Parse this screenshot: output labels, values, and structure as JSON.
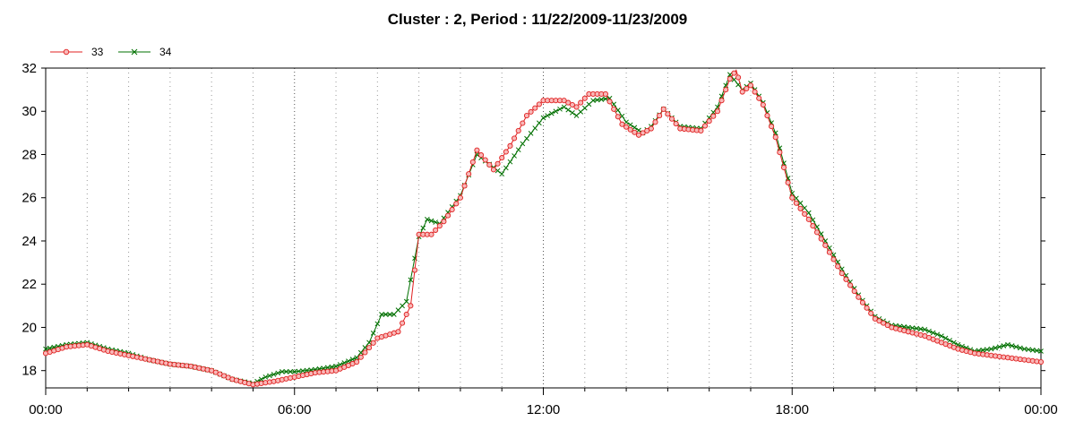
{
  "chart_data": {
    "type": "line",
    "title": "Cluster : 2, Period : 11/22/2009-11/23/2009",
    "xlabel": "",
    "ylabel": "",
    "x_tick_labels": [
      "00:00",
      "06:00",
      "12:00",
      "18:00",
      "00:00"
    ],
    "x_hours": [
      0,
      24
    ],
    "ylim": [
      17.2,
      32
    ],
    "y_ticks": [
      18,
      20,
      22,
      24,
      26,
      28,
      30,
      32
    ],
    "grid": "vertical dotted",
    "legend_position": "top-left",
    "series": [
      {
        "name": "33",
        "color": "#e02020",
        "marker": "circle",
        "points": [
          [
            0,
            18.8
          ],
          [
            0.5,
            19.1
          ],
          [
            1,
            19.2
          ],
          [
            1.5,
            18.9
          ],
          [
            2,
            18.7
          ],
          [
            2.5,
            18.5
          ],
          [
            3,
            18.3
          ],
          [
            3.5,
            18.2
          ],
          [
            4,
            18.0
          ],
          [
            4.5,
            17.6
          ],
          [
            5,
            17.35
          ],
          [
            5.5,
            17.5
          ],
          [
            6,
            17.7
          ],
          [
            6.5,
            17.9
          ],
          [
            7,
            18.0
          ],
          [
            7.5,
            18.4
          ],
          [
            8,
            19.5
          ],
          [
            8.5,
            19.8
          ],
          [
            8.8,
            21.0
          ],
          [
            9,
            24.3
          ],
          [
            9.3,
            24.3
          ],
          [
            9.6,
            24.9
          ],
          [
            10,
            26.0
          ],
          [
            10.4,
            28.2
          ],
          [
            10.8,
            27.3
          ],
          [
            11.2,
            28.4
          ],
          [
            11.6,
            29.8
          ],
          [
            12,
            30.5
          ],
          [
            12.5,
            30.5
          ],
          [
            12.8,
            30.2
          ],
          [
            13.1,
            30.8
          ],
          [
            13.5,
            30.8
          ],
          [
            13.9,
            29.4
          ],
          [
            14.3,
            28.9
          ],
          [
            14.6,
            29.2
          ],
          [
            14.9,
            30.1
          ],
          [
            15.3,
            29.2
          ],
          [
            15.8,
            29.1
          ],
          [
            16.2,
            30.0
          ],
          [
            16.5,
            31.5
          ],
          [
            16.65,
            31.9
          ],
          [
            16.8,
            30.9
          ],
          [
            17,
            31.2
          ],
          [
            17.3,
            30.3
          ],
          [
            17.6,
            28.8
          ],
          [
            18,
            26.0
          ],
          [
            18.4,
            25.0
          ],
          [
            18.8,
            23.8
          ],
          [
            19.2,
            22.5
          ],
          [
            19.6,
            21.4
          ],
          [
            20,
            20.4
          ],
          [
            20.4,
            20.0
          ],
          [
            20.8,
            19.8
          ],
          [
            21.2,
            19.6
          ],
          [
            21.6,
            19.3
          ],
          [
            22,
            19.0
          ],
          [
            22.4,
            18.8
          ],
          [
            22.8,
            18.7
          ],
          [
            23.2,
            18.6
          ],
          [
            23.6,
            18.5
          ],
          [
            24,
            18.4
          ]
        ]
      },
      {
        "name": "34",
        "color": "#007000",
        "marker": "x",
        "points": [
          [
            0,
            19.0
          ],
          [
            0.5,
            19.2
          ],
          [
            1,
            19.3
          ],
          [
            1.5,
            19.0
          ],
          [
            2,
            18.8
          ],
          [
            2.5,
            18.5
          ],
          [
            3,
            18.3
          ],
          [
            3.5,
            18.2
          ],
          [
            4,
            18.0
          ],
          [
            4.5,
            17.6
          ],
          [
            5,
            17.4
          ],
          [
            5.3,
            17.7
          ],
          [
            5.7,
            17.95
          ],
          [
            6,
            17.95
          ],
          [
            6.5,
            18.05
          ],
          [
            7,
            18.2
          ],
          [
            7.5,
            18.6
          ],
          [
            7.8,
            19.3
          ],
          [
            8.1,
            20.6
          ],
          [
            8.4,
            20.6
          ],
          [
            8.7,
            21.2
          ],
          [
            9,
            24.2
          ],
          [
            9.2,
            25.0
          ],
          [
            9.5,
            24.8
          ],
          [
            10,
            26.1
          ],
          [
            10.4,
            28.0
          ],
          [
            10.8,
            27.4
          ],
          [
            11,
            27.1
          ],
          [
            11.5,
            28.5
          ],
          [
            12,
            29.7
          ],
          [
            12.5,
            30.2
          ],
          [
            12.8,
            29.8
          ],
          [
            13.2,
            30.5
          ],
          [
            13.6,
            30.6
          ],
          [
            14,
            29.5
          ],
          [
            14.4,
            29.0
          ],
          [
            14.6,
            29.3
          ],
          [
            14.9,
            30.1
          ],
          [
            15.3,
            29.3
          ],
          [
            15.8,
            29.2
          ],
          [
            16.2,
            30.2
          ],
          [
            16.5,
            31.7
          ],
          [
            16.8,
            31.0
          ],
          [
            17,
            31.3
          ],
          [
            17.3,
            30.4
          ],
          [
            17.6,
            29.0
          ],
          [
            18,
            26.2
          ],
          [
            18.4,
            25.3
          ],
          [
            18.8,
            24.0
          ],
          [
            19.2,
            22.7
          ],
          [
            19.6,
            21.5
          ],
          [
            20,
            20.5
          ],
          [
            20.4,
            20.1
          ],
          [
            20.8,
            20.0
          ],
          [
            21.2,
            19.9
          ],
          [
            21.6,
            19.6
          ],
          [
            22,
            19.2
          ],
          [
            22.4,
            18.9
          ],
          [
            22.8,
            19.0
          ],
          [
            23.2,
            19.2
          ],
          [
            23.6,
            19.0
          ],
          [
            24,
            18.9
          ]
        ]
      }
    ]
  }
}
